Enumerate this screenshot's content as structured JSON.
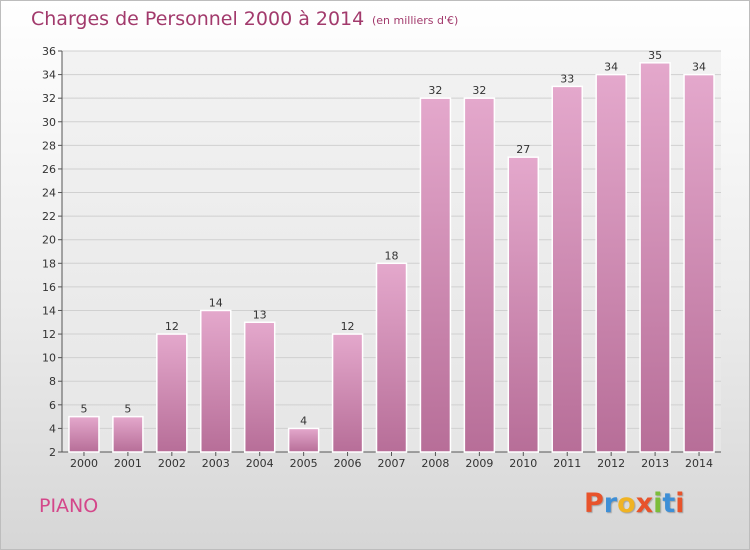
{
  "chart_data": {
    "type": "bar",
    "title": "Charges de Personnel 2000 à 2014",
    "subtitle": "(en milliers d'€)",
    "categories": [
      "2000",
      "2001",
      "2002",
      "2003",
      "2004",
      "2005",
      "2006",
      "2007",
      "2008",
      "2009",
      "2010",
      "2011",
      "2012",
      "2013",
      "2014"
    ],
    "values": [
      5,
      5,
      12,
      14,
      13,
      4,
      12,
      18,
      32,
      32,
      27,
      33,
      34,
      35,
      34
    ],
    "ylim": [
      2,
      36
    ],
    "yticks": [
      2,
      4,
      6,
      8,
      10,
      12,
      14,
      16,
      18,
      20,
      22,
      24,
      26,
      28,
      30,
      32,
      34,
      36
    ],
    "grid": true,
    "legend": "none",
    "bar_color_top": "#e4a8cc",
    "bar_color_bottom": "#b76e98"
  },
  "footer": {
    "commune": "PIANO",
    "logo": "Proxiti"
  },
  "colors": {
    "title": "#a23a6c",
    "commune": "#d4478a",
    "logo_letters": [
      "#e8532b",
      "#3e8fd6",
      "#f0b323",
      "#e8532b",
      "#7cbd3b",
      "#3e8fd6",
      "#e8532b"
    ]
  }
}
